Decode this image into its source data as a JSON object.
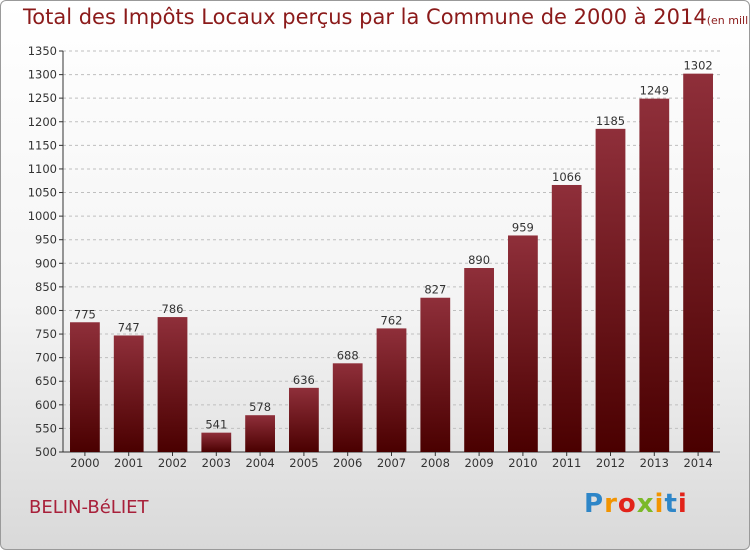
{
  "title": "Total des Impôts Locaux perçus par la Commune de 2000 à 2014",
  "unit": "(en milliers d'€)",
  "commune": "BELIN-BéLIET",
  "brand": "Proxiti",
  "colors": {
    "bar_top": "#8f2f3a",
    "bar_bottom": "#4a0000",
    "title": "#8b1a1a",
    "axis": "#333333",
    "grid": "#bfbfbf"
  },
  "chart_data": {
    "type": "bar",
    "categories": [
      "2000",
      "2001",
      "2002",
      "2003",
      "2004",
      "2005",
      "2006",
      "2007",
      "2008",
      "2009",
      "2010",
      "2011",
      "2012",
      "2013",
      "2014"
    ],
    "values": [
      775,
      747,
      786,
      541,
      578,
      636,
      688,
      762,
      827,
      890,
      959,
      1066,
      1185,
      1249,
      1302
    ],
    "ylim": [
      500,
      1350
    ],
    "yticks": [
      500,
      550,
      600,
      650,
      700,
      750,
      800,
      850,
      900,
      950,
      1000,
      1050,
      1100,
      1150,
      1200,
      1250,
      1300,
      1350
    ],
    "grid": true,
    "xlabel": "",
    "ylabel": ""
  }
}
